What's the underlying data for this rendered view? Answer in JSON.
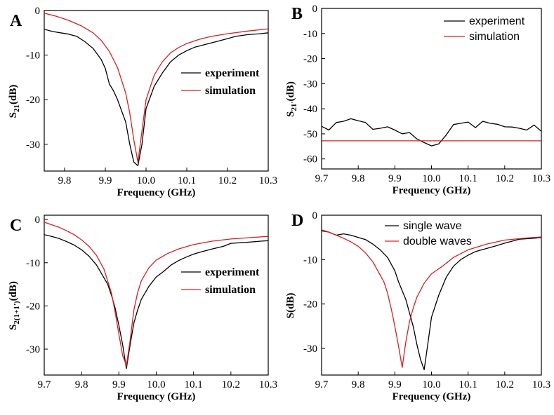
{
  "colors": {
    "experiment": "#000000",
    "simulation": "#d62020"
  },
  "chart_data": [
    {
      "panel": "A",
      "type": "line",
      "xlabel": "Frequency (GHz)",
      "ylabel": {
        "base": "S",
        "sub": "21",
        "tail": "(dB)"
      },
      "xlim": [
        9.75,
        10.3
      ],
      "ylim": [
        -36,
        0
      ],
      "xticks": [
        9.8,
        9.9,
        10.0,
        10.1,
        10.2,
        10.3
      ],
      "xtick_labels": [
        "9.8",
        "9.9",
        "10.0",
        "10.1",
        "10.2",
        "10.3"
      ],
      "yticks": [
        0,
        -10,
        -20,
        -30
      ],
      "ytick_labels": [
        "0",
        "-10",
        "-20",
        "-30"
      ],
      "legend": {
        "position": "center-right",
        "style": "serif-bold"
      },
      "series": [
        {
          "name": "experiment",
          "color": "#000000",
          "x": [
            9.75,
            9.77,
            9.79,
            9.81,
            9.83,
            9.85,
            9.87,
            9.89,
            9.9,
            9.91,
            9.92,
            9.93,
            9.94,
            9.95,
            9.96,
            9.97,
            9.98,
            9.99,
            10.0,
            10.02,
            10.04,
            10.06,
            10.08,
            10.1,
            10.12,
            10.15,
            10.18,
            10.2,
            10.22,
            10.25,
            10.28,
            10.3
          ],
          "y": [
            -4.2,
            -4.7,
            -5.0,
            -5.3,
            -5.8,
            -7.0,
            -8.5,
            -11.0,
            -13.0,
            -16.5,
            -18.0,
            -20.0,
            -22.5,
            -25.0,
            -30.0,
            -34.0,
            -34.8,
            -30.0,
            -22.0,
            -17.0,
            -14.0,
            -11.5,
            -10.0,
            -9.0,
            -8.2,
            -7.5,
            -6.8,
            -6.3,
            -5.8,
            -5.4,
            -5.2,
            -5.0
          ]
        },
        {
          "name": "simulation",
          "color": "#d62020",
          "x": [
            9.75,
            9.78,
            9.81,
            9.84,
            9.87,
            9.89,
            9.91,
            9.93,
            9.95,
            9.96,
            9.97,
            9.98,
            9.99,
            10.0,
            10.02,
            10.04,
            10.06,
            10.08,
            10.1,
            10.13,
            10.16,
            10.2,
            10.25,
            10.3
          ],
          "y": [
            -0.6,
            -1.3,
            -2.2,
            -3.4,
            -5.0,
            -6.7,
            -9.2,
            -12.8,
            -18.5,
            -23.0,
            -29.0,
            -34.0,
            -27.0,
            -20.0,
            -14.5,
            -11.5,
            -9.5,
            -8.3,
            -7.4,
            -6.5,
            -5.8,
            -5.2,
            -4.6,
            -4.1
          ]
        }
      ]
    },
    {
      "panel": "B",
      "type": "line",
      "xlabel": "Frequency (GHz)",
      "ylabel": {
        "base": "S",
        "sub": "21'",
        "tail": "(dB)"
      },
      "xlim": [
        9.7,
        10.3
      ],
      "ylim": [
        -64,
        0
      ],
      "xticks": [
        9.7,
        9.8,
        9.9,
        10.0,
        10.1,
        10.2,
        10.3
      ],
      "xtick_labels": [
        "9.7",
        "9.8",
        "9.9",
        "10.0",
        "10.1",
        "10.2",
        "10.3"
      ],
      "yticks": [
        0,
        -10,
        -20,
        -30,
        -40,
        -50,
        -60
      ],
      "ytick_labels": [
        "0",
        "-10",
        "-20",
        "-30",
        "-40",
        "-50",
        "-60"
      ],
      "legend": {
        "position": "top-right",
        "style": "sans"
      },
      "series": [
        {
          "name": "experiment",
          "color": "#000000",
          "x": [
            9.7,
            9.72,
            9.74,
            9.76,
            9.78,
            9.8,
            9.82,
            9.84,
            9.86,
            9.88,
            9.9,
            9.92,
            9.94,
            9.96,
            9.98,
            10.0,
            10.02,
            10.04,
            10.06,
            10.08,
            10.1,
            10.12,
            10.14,
            10.16,
            10.18,
            10.2,
            10.22,
            10.24,
            10.26,
            10.28,
            10.3
          ],
          "y": [
            -47.0,
            -48.5,
            -45.5,
            -45.0,
            -44.0,
            -44.8,
            -45.5,
            -48.2,
            -47.8,
            -47.2,
            -48.5,
            -50.0,
            -49.5,
            -52.0,
            -53.5,
            -54.8,
            -54.0,
            -50.5,
            -46.3,
            -45.8,
            -45.3,
            -47.5,
            -45.0,
            -45.8,
            -46.2,
            -47.2,
            -47.3,
            -47.8,
            -48.5,
            -46.5,
            -49.0
          ]
        },
        {
          "name": "simulation",
          "color": "#d62020",
          "x": [
            9.7,
            10.3
          ],
          "y": [
            -52.8,
            -52.8
          ]
        }
      ]
    },
    {
      "panel": "C",
      "type": "line",
      "xlabel": "Frequency (GHz)",
      "ylabel": {
        "base": "S",
        "sub": "2(1+1')",
        "tail": "(dB)"
      },
      "xlim": [
        9.7,
        10.3
      ],
      "ylim": [
        -36,
        1
      ],
      "xticks": [
        9.7,
        9.8,
        9.9,
        10.0,
        10.1,
        10.2,
        10.3
      ],
      "xtick_labels": [
        "9.7",
        "9.8",
        "9.9",
        "10.0",
        "10.1",
        "10.2",
        "10.3"
      ],
      "yticks": [
        0,
        -10,
        -20,
        -30
      ],
      "ytick_labels": [
        "0",
        "-10",
        "-20",
        "-30"
      ],
      "legend": {
        "position": "center-right",
        "style": "serif-bold"
      },
      "series": [
        {
          "name": "experiment",
          "color": "#000000",
          "x": [
            9.7,
            9.72,
            9.74,
            9.76,
            9.78,
            9.8,
            9.82,
            9.84,
            9.86,
            9.87,
            9.88,
            9.89,
            9.9,
            9.91,
            9.92,
            9.93,
            9.94,
            9.95,
            9.96,
            9.98,
            10.0,
            10.02,
            10.04,
            10.06,
            10.08,
            10.1,
            10.12,
            10.15,
            10.18,
            10.2,
            10.24,
            10.28,
            10.3
          ],
          "y": [
            -3.5,
            -3.9,
            -4.4,
            -5.1,
            -5.9,
            -7.0,
            -8.5,
            -10.5,
            -13.5,
            -15.0,
            -17.5,
            -20.5,
            -24.5,
            -29.0,
            -34.5,
            -29.0,
            -24.0,
            -21.0,
            -18.5,
            -15.5,
            -13.3,
            -12.0,
            -10.5,
            -9.5,
            -8.7,
            -8.0,
            -7.5,
            -6.8,
            -6.2,
            -5.5,
            -5.3,
            -5.0,
            -4.9
          ]
        },
        {
          "name": "simulation",
          "color": "#d62020",
          "x": [
            9.7,
            9.72,
            9.74,
            9.76,
            9.78,
            9.8,
            9.82,
            9.84,
            9.86,
            9.88,
            9.89,
            9.9,
            9.91,
            9.92,
            9.93,
            9.94,
            9.95,
            9.96,
            9.98,
            10.0,
            10.03,
            10.06,
            10.1,
            10.15,
            10.2,
            10.25,
            10.3
          ],
          "y": [
            -0.6,
            -1.2,
            -1.8,
            -2.6,
            -3.5,
            -4.7,
            -6.2,
            -8.3,
            -11.5,
            -17.0,
            -21.5,
            -26.5,
            -31.5,
            -33.8,
            -28.0,
            -21.0,
            -17.0,
            -14.2,
            -11.2,
            -9.4,
            -7.9,
            -6.8,
            -5.8,
            -5.0,
            -4.5,
            -4.2,
            -3.9
          ]
        }
      ]
    },
    {
      "panel": "D",
      "type": "line",
      "xlabel": "Frequency (GHz)",
      "ylabel": {
        "base": "S",
        "sub": "",
        "tail": "(dB)"
      },
      "xlim": [
        9.7,
        10.3
      ],
      "ylim": [
        -36,
        0
      ],
      "xticks": [
        9.7,
        9.8,
        9.9,
        10.0,
        10.1,
        10.2,
        10.3
      ],
      "xtick_labels": [
        "9.7",
        "9.8",
        "9.9",
        "10.0",
        "10.1",
        "10.2",
        "10.3"
      ],
      "yticks": [
        0,
        -10,
        -20,
        -30
      ],
      "ytick_labels": [
        "0",
        "-10",
        "-20",
        "-30"
      ],
      "legend": {
        "position": "top-center",
        "style": "sans"
      },
      "series": [
        {
          "name": "single wave",
          "color": "#000000",
          "x": [
            9.7,
            9.72,
            9.74,
            9.76,
            9.78,
            9.8,
            9.82,
            9.84,
            9.86,
            9.88,
            9.9,
            9.91,
            9.92,
            9.93,
            9.94,
            9.95,
            9.96,
            9.97,
            9.98,
            9.99,
            10.0,
            10.02,
            10.04,
            10.06,
            10.08,
            10.1,
            10.12,
            10.15,
            10.18,
            10.2,
            10.24,
            10.28,
            10.3
          ],
          "y": [
            -3.5,
            -3.8,
            -4.5,
            -4.2,
            -4.5,
            -5.0,
            -5.5,
            -6.5,
            -7.8,
            -9.5,
            -12.5,
            -15.0,
            -17.0,
            -19.0,
            -22.0,
            -25.0,
            -29.0,
            -32.5,
            -34.8,
            -29.0,
            -23.0,
            -18.0,
            -14.0,
            -11.5,
            -10.0,
            -9.0,
            -8.2,
            -7.5,
            -6.8,
            -6.3,
            -5.4,
            -5.2,
            -5.0
          ]
        },
        {
          "name": "double waves",
          "color": "#d62020",
          "x": [
            9.7,
            9.72,
            9.74,
            9.76,
            9.78,
            9.8,
            9.82,
            9.84,
            9.86,
            9.87,
            9.88,
            9.89,
            9.9,
            9.91,
            9.92,
            9.93,
            9.94,
            9.95,
            9.96,
            9.98,
            10.0,
            10.03,
            10.06,
            10.1,
            10.15,
            10.2,
            10.25,
            10.3
          ],
          "y": [
            -3.3,
            -3.8,
            -4.5,
            -5.2,
            -6.0,
            -7.0,
            -8.5,
            -10.5,
            -13.5,
            -15.0,
            -17.5,
            -21.0,
            -25.0,
            -29.5,
            -34.3,
            -28.5,
            -24.0,
            -21.0,
            -18.5,
            -15.3,
            -13.2,
            -11.5,
            -9.5,
            -7.8,
            -6.5,
            -5.6,
            -5.2,
            -4.9
          ]
        }
      ]
    }
  ]
}
